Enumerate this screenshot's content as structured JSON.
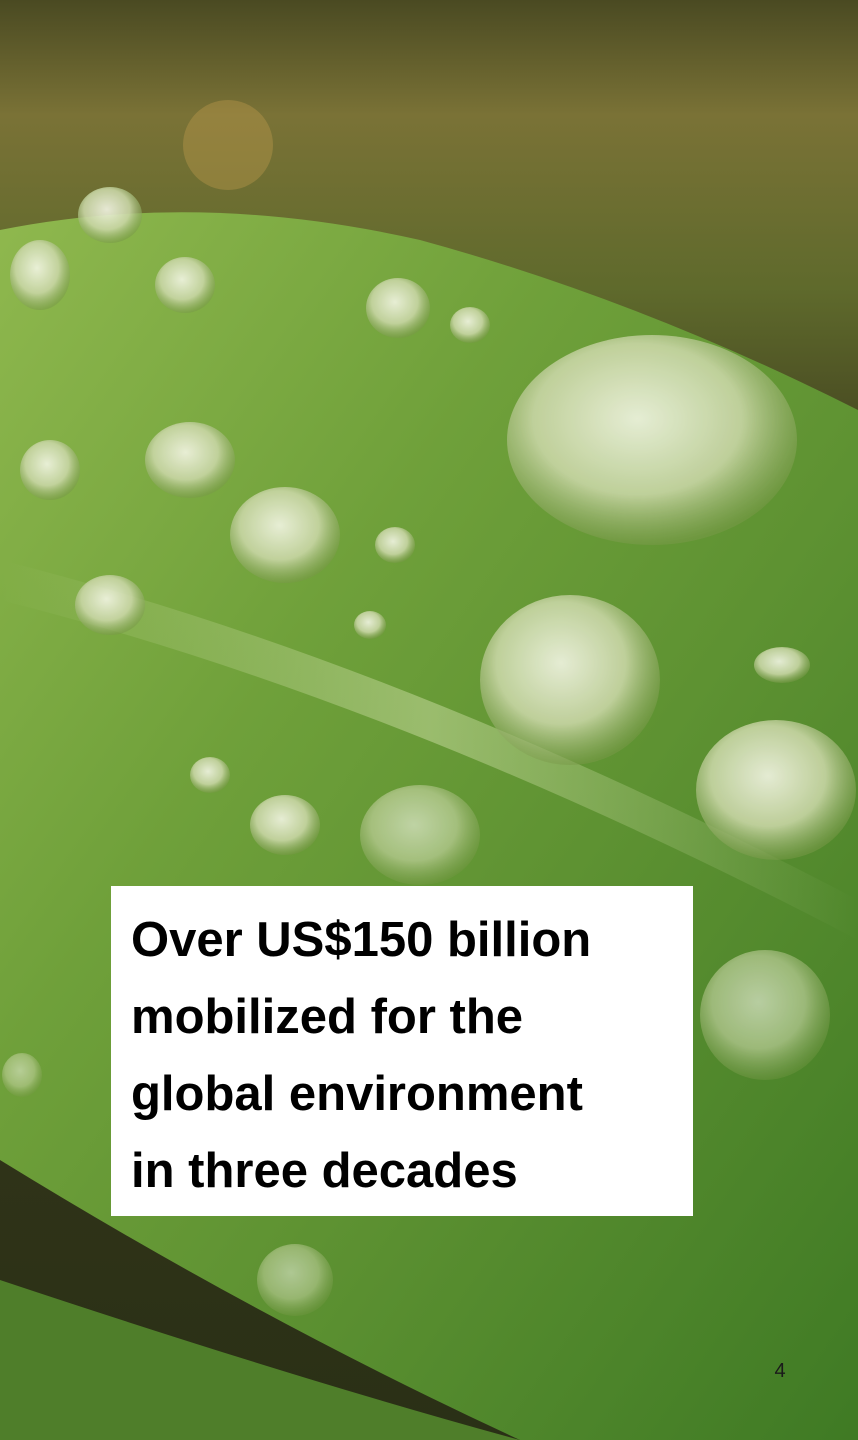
{
  "slide": {
    "headline": [
      "Over US$150 billion",
      "mobilized for the",
      "global environment",
      "in three decades"
    ],
    "page_number": "4"
  }
}
